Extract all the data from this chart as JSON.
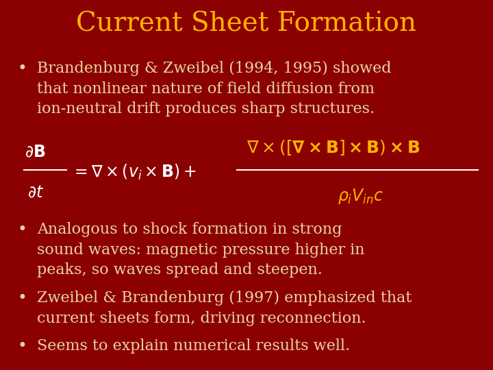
{
  "title": "Current Sheet Formation",
  "title_color": "#FFB300",
  "title_fontsize": 28,
  "background_color": "#8B0000",
  "bullet_color": "#FFB300",
  "text_color": "#E8D5A0",
  "eq_white": "#FFFFFF",
  "eq_gold": "#FFB300",
  "bullet_fontsize": 16,
  "eq_fontsize": 17,
  "figsize": [
    7.2,
    5.4
  ],
  "dpi": 100,
  "bullet1": "Brandenburg & Zweibel (1994, 1995) showed\nthat nonlinear nature of field diffusion from\nion-neutral drift produces sharp structures.",
  "bullet2": "Analogous to shock formation in strong\nsound waves: magnetic pressure higher in\npeaks, so waves spread and steepen.",
  "bullet3": "Zweibel & Brandenburg (1997) emphasized that\ncurrent sheets form, driving reconnection.",
  "bullet4": "Seems to explain numerical results well."
}
